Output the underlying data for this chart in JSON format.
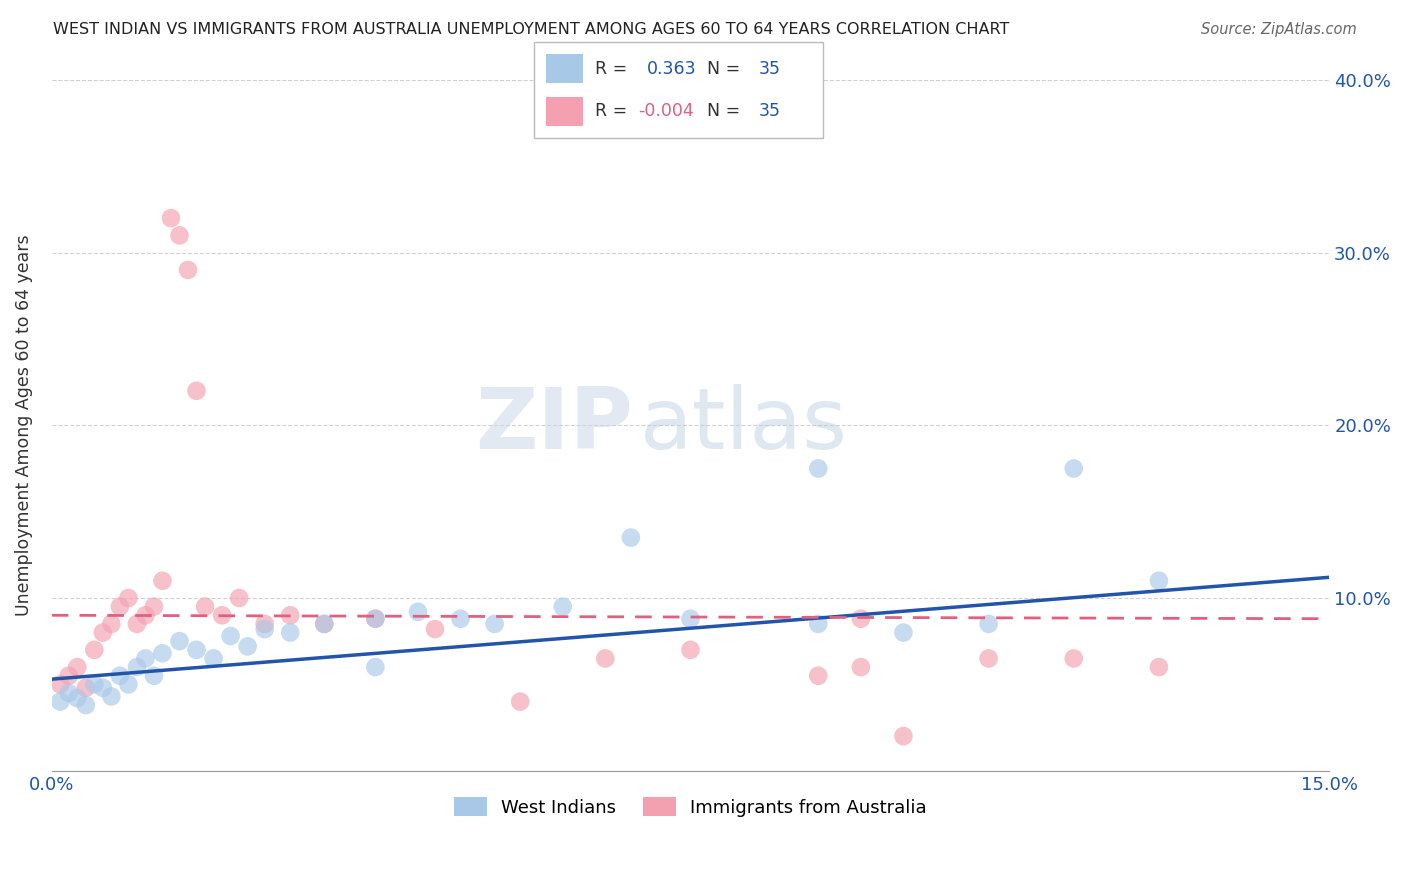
{
  "title": "WEST INDIAN VS IMMIGRANTS FROM AUSTRALIA UNEMPLOYMENT AMONG AGES 60 TO 64 YEARS CORRELATION CHART",
  "source": "Source: ZipAtlas.com",
  "ylabel": "Unemployment Among Ages 60 to 64 years",
  "legend_label_blue": "West Indians",
  "legend_label_pink": "Immigrants from Australia",
  "blue_color": "#a8c8e8",
  "pink_color": "#f4a0b0",
  "blue_line_color": "#2255aa",
  "pink_line_color": "#e06080",
  "pink_line_dash": [
    6,
    4
  ],
  "R_blue": 0.363,
  "R_pink": -0.004,
  "N": 35,
  "xmin": 0.0,
  "xmax": 0.15,
  "ymin": 0.0,
  "ymax": 0.4,
  "watermark_zip": "ZIP",
  "watermark_atlas": "atlas",
  "blue_scatter_x": [
    0.001,
    0.002,
    0.003,
    0.004,
    0.005,
    0.006,
    0.007,
    0.008,
    0.009,
    0.01,
    0.011,
    0.012,
    0.013,
    0.015,
    0.017,
    0.019,
    0.021,
    0.023,
    0.025,
    0.028,
    0.032,
    0.038,
    0.038,
    0.043,
    0.048,
    0.052,
    0.06,
    0.068,
    0.075,
    0.09,
    0.09,
    0.1,
    0.11,
    0.12,
    0.13
  ],
  "blue_scatter_y": [
    0.04,
    0.045,
    0.042,
    0.038,
    0.05,
    0.048,
    0.043,
    0.055,
    0.05,
    0.06,
    0.065,
    0.055,
    0.068,
    0.075,
    0.07,
    0.065,
    0.078,
    0.072,
    0.082,
    0.08,
    0.085,
    0.088,
    0.06,
    0.092,
    0.088,
    0.085,
    0.095,
    0.135,
    0.088,
    0.085,
    0.175,
    0.08,
    0.085,
    0.175,
    0.11
  ],
  "pink_scatter_x": [
    0.001,
    0.002,
    0.003,
    0.004,
    0.005,
    0.006,
    0.007,
    0.008,
    0.009,
    0.01,
    0.011,
    0.012,
    0.013,
    0.014,
    0.015,
    0.016,
    0.017,
    0.018,
    0.02,
    0.022,
    0.025,
    0.028,
    0.032,
    0.038,
    0.045,
    0.055,
    0.065,
    0.075,
    0.09,
    0.095,
    0.095,
    0.1,
    0.11,
    0.12,
    0.13
  ],
  "pink_scatter_y": [
    0.05,
    0.055,
    0.06,
    0.048,
    0.07,
    0.08,
    0.085,
    0.095,
    0.1,
    0.085,
    0.09,
    0.095,
    0.11,
    0.32,
    0.31,
    0.29,
    0.22,
    0.095,
    0.09,
    0.1,
    0.085,
    0.09,
    0.085,
    0.088,
    0.082,
    0.04,
    0.065,
    0.07,
    0.055,
    0.06,
    0.088,
    0.02,
    0.065,
    0.065,
    0.06
  ]
}
